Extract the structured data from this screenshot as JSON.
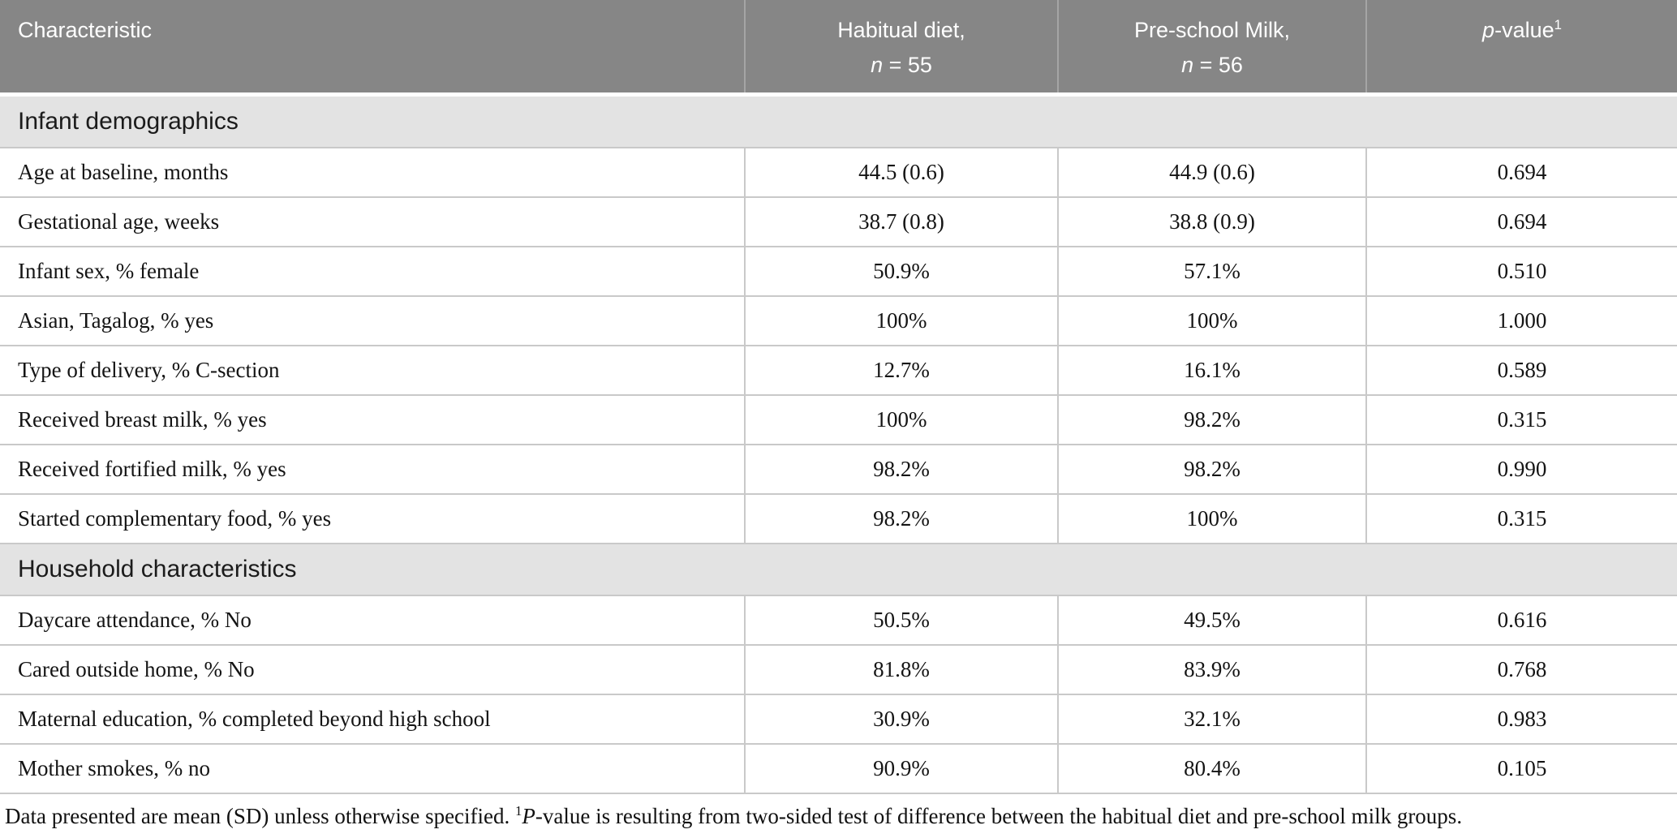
{
  "colors": {
    "header_bg": "#868686",
    "header_text": "#ffffff",
    "header_divider": "#a5a5a5",
    "section_band_bg": "#e3e3e3",
    "row_border": "#c9c9c9",
    "body_text": "#141414"
  },
  "header": {
    "characteristic": "Characteristic",
    "group1_line1": "Habitual diet,",
    "group1_n": "n",
    "group1_rest": " = 55",
    "group2_line1": "Pre-school Milk,",
    "group2_n": "n",
    "group2_rest": " = 56",
    "pvalue_p": "p",
    "pvalue_rest": "-value",
    "pvalue_sup": "1"
  },
  "sections": [
    {
      "title": "Infant demographics",
      "rows": [
        {
          "label": "Age at baseline, months",
          "habitual": "44.5 (0.6)",
          "preschool": "44.9 (0.6)",
          "p": "0.694"
        },
        {
          "label": "Gestational age, weeks",
          "habitual": "38.7 (0.8)",
          "preschool": "38.8 (0.9)",
          "p": "0.694"
        },
        {
          "label": "Infant sex, % female",
          "habitual": "50.9%",
          "preschool": "57.1%",
          "p": "0.510"
        },
        {
          "label": "Asian, Tagalog, % yes",
          "habitual": "100%",
          "preschool": "100%",
          "p": "1.000"
        },
        {
          "label": "Type of delivery, % C-section",
          "habitual": "12.7%",
          "preschool": "16.1%",
          "p": "0.589"
        },
        {
          "label": "Received breast milk, % yes",
          "habitual": "100%",
          "preschool": "98.2%",
          "p": "0.315"
        },
        {
          "label": "Received fortified milk, % yes",
          "habitual": "98.2%",
          "preschool": "98.2%",
          "p": "0.990"
        },
        {
          "label": "Started complementary food, % yes",
          "habitual": "98.2%",
          "preschool": "100%",
          "p": "0.315"
        }
      ]
    },
    {
      "title": "Household characteristics",
      "rows": [
        {
          "label": "Daycare attendance, % No",
          "habitual": "50.5%",
          "preschool": "49.5%",
          "p": "0.616"
        },
        {
          "label": "Cared outside home, % No",
          "habitual": "81.8%",
          "preschool": "83.9%",
          "p": "0.768"
        },
        {
          "label": "Maternal education, % completed beyond high school",
          "habitual": "30.9%",
          "preschool": "32.1%",
          "p": "0.983"
        },
        {
          "label": "Mother smokes, % no",
          "habitual": "90.9%",
          "preschool": "80.4%",
          "p": "0.105"
        }
      ]
    }
  ],
  "footnote": {
    "part1": "Data presented are mean (SD) unless otherwise specified. ",
    "sup": "1",
    "p_italic": "P",
    "part2": "-value is resulting from two-sided test of difference between the habitual diet and pre-school milk groups."
  }
}
